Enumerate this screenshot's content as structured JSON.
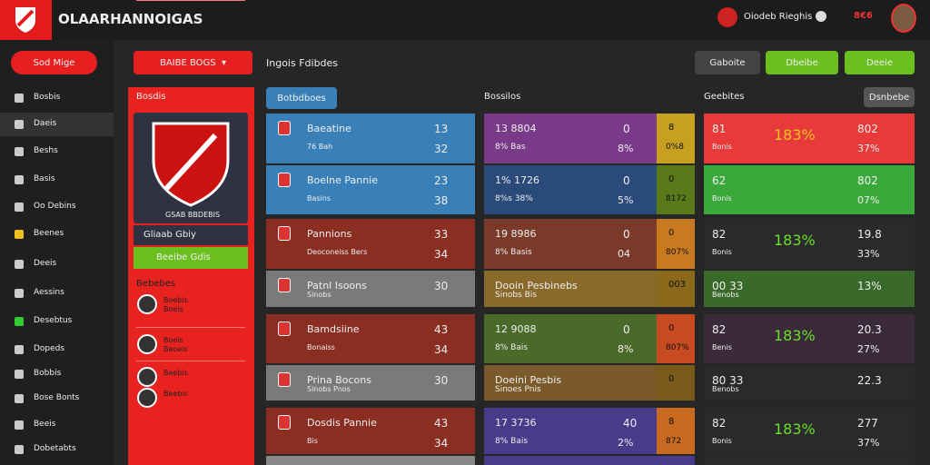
{
  "header": {
    "title": "OLAARHANNOIGAS",
    "user": "Oiodeb Rieghis",
    "badge": "8€6"
  },
  "sidebar": {
    "button": "Sod Mige",
    "items": [
      "Bosbis",
      "Daeis",
      "Beshs",
      "Basis",
      "Oo Debins",
      "Beenes",
      "Deeis",
      "Aessins",
      "Desebtus",
      "Dopeds",
      "Bobbis",
      "Bose Bonts",
      "Beeis",
      "Dobetabts"
    ]
  },
  "panel": {
    "title": "Bosdis",
    "crest": "GSAB BBDEBIS",
    "tab1": "Gliaab Gbiy",
    "tab2": "Beeibe Gdis",
    "section": "Bebebes",
    "list": [
      {
        "name": "Boebis",
        "sub": "Boeis"
      },
      {
        "name": "Boeis",
        "sub": "Beoeis"
      },
      {
        "name": "Beebis"
      },
      {
        "name": "Beebis"
      }
    ]
  },
  "toolbar": {
    "dropdown": "BAIBE BOGS",
    "label": "Ingois Fdibdes",
    "buttons": [
      "Gaboite",
      "Dbeibe",
      "Deeie"
    ]
  },
  "columns": {
    "c1": "Botbdboes",
    "c2": "Bossilos",
    "c3": "Geebites",
    "c4": "Dsnbebe"
  },
  "rows": [
    {
      "name": "Baeatine",
      "sub": "76 Bah",
      "n1": "13",
      "n2": "32",
      "m1": "13 8804",
      "m2": "0",
      "m3": "8% Bas",
      "m4": "8%",
      "s1": "8",
      "s2": "0%8",
      "r1": "81",
      "rp": "183%",
      "r2": "802",
      "r3": "Bonis",
      "r4": "37%"
    },
    {
      "name": "Boelne Pannie",
      "sub": "Basins",
      "n1": "23",
      "n2": "38",
      "m1": "1% 1726",
      "m2": "0",
      "m3": "8%s 38%",
      "m4": "5%",
      "s1": "0",
      "s2": "8172",
      "r1": "62",
      "r2": "802",
      "r3": "Bonis",
      "r4": "07%"
    },
    {
      "name": "Pannions",
      "sub": "Deoconeiss Bers",
      "n1": "33",
      "n2": "34",
      "m1": "19 8986",
      "m2": "0",
      "m3": "8% Basis",
      "m4": "04",
      "s1": "0",
      "s2": "807%",
      "r1": "82",
      "rp": "183%",
      "r2": "19.8",
      "r3": "Bonis",
      "r4": "33%"
    },
    {
      "name": "Patnl Isoons",
      "sub": "Sinobs",
      "n1": "30",
      "m1": "Dooin Pesbinebs",
      "m3": "Sinobs Bis",
      "s1": "003",
      "r1": "00 33",
      "r3": "Benobs",
      "r2": "13%"
    },
    {
      "name": "Bamdsiine",
      "sub": "Bonaiss",
      "n1": "43",
      "n2": "34",
      "m1": "12 9088",
      "m2": "0",
      "m3": "8% Bais",
      "m4": "8%",
      "s1": "0",
      "s2": "807%",
      "r1": "82",
      "rp": "183%",
      "r2": "20.3",
      "r3": "Benis",
      "r4": "27%"
    },
    {
      "name": "Prina Bocons",
      "sub": "Sinobs Pnos",
      "n1": "30",
      "m1": "Doeini Pesbis",
      "m3": "Sinoes Pnis",
      "s1": "0",
      "r1": "80 33",
      "r3": "Benobs",
      "r2": "22.3"
    },
    {
      "name": "Dosdis Pannie",
      "sub": "Bis",
      "n1": "43",
      "n2": "34",
      "m1": "17 3736",
      "m2": "40",
      "m3": "8% Bais",
      "m4": "2%",
      "s1": "8",
      "s2": "872",
      "r1": "82",
      "rp": "183%",
      "r2": "277",
      "r3": "Bonis",
      "r4": "37%"
    }
  ]
}
